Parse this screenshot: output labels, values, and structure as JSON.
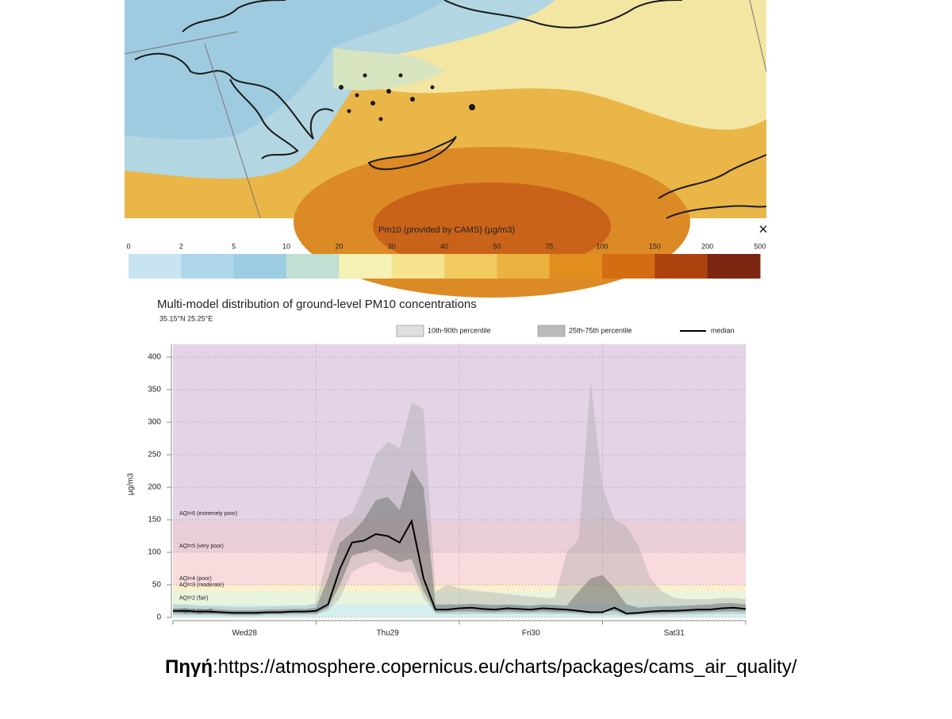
{
  "colorbar": {
    "title": "Pm10 (provided by CAMS) (µg/m3)",
    "ticks": [
      0,
      2,
      5,
      10,
      20,
      30,
      40,
      50,
      75,
      100,
      150,
      200,
      500
    ],
    "colors": [
      "#c8e4f1",
      "#add6ea",
      "#9ccde3",
      "#bfe0d2",
      "#f6f1b4",
      "#f6e38e",
      "#f1cb62",
      "#ecb23f",
      "#e28e1e",
      "#d46c12",
      "#ad4410",
      "#7c2612"
    ]
  },
  "chart_data": {
    "type": "band-line",
    "title": "Multi-model distribution of ground-level PM10 concentrations",
    "subtitle": "35.15°N 25.25°E",
    "y_label": "μg/m3",
    "legend": "top",
    "categories": [
      null,
      null,
      null,
      null,
      null,
      null,
      "Wed28",
      null,
      null,
      null,
      null,
      null,
      null,
      null,
      null,
      null,
      null,
      null,
      "Thu29",
      null,
      null,
      null,
      null,
      null,
      null,
      null,
      null,
      null,
      null,
      null,
      "Fri30",
      null,
      null,
      null,
      null,
      null,
      null,
      null,
      null,
      null,
      null,
      null,
      "Sat31",
      null,
      null,
      null,
      null,
      null,
      null
    ],
    "ylim": [
      0,
      420
    ],
    "yticks": [
      0,
      50,
      100,
      150,
      200,
      250,
      300,
      350,
      400
    ],
    "grid": true,
    "aqi_bands": [
      {
        "label": "AQI=1 (good)",
        "from": 0,
        "to": 20,
        "color": "#d3f0ef"
      },
      {
        "label": "AQI=2 (fair)",
        "from": 20,
        "to": 40,
        "color": "#e9f4dc"
      },
      {
        "label": "AQI=3 (moderate)",
        "from": 40,
        "to": 50,
        "color": "#f8f1cc"
      },
      {
        "label": "AQI=4 (poor)",
        "from": 50,
        "to": 100,
        "color": "#f9dadd"
      },
      {
        "label": "AQI=5 (very poor)",
        "from": 100,
        "to": 150,
        "color": "#e9cdd9"
      },
      {
        "label": "AQI=6 (extremely poor)",
        "from": 150,
        "color": "#e4d3e6"
      }
    ],
    "series": [
      {
        "name": "10th-90th percentile",
        "color": "#9a9a9a",
        "low": [
          3,
          3,
          3,
          3,
          3,
          2,
          2,
          2,
          3,
          3,
          3,
          3,
          4,
          10,
          30,
          70,
          80,
          85,
          75,
          70,
          70,
          30,
          5,
          5,
          5,
          5,
          5,
          5,
          5,
          5,
          5,
          5,
          5,
          5,
          4,
          3,
          3,
          4,
          2,
          3,
          3,
          3,
          4,
          4,
          4,
          5,
          5,
          5,
          5
        ],
        "high": [
          20,
          20,
          18,
          18,
          17,
          16,
          16,
          16,
          17,
          17,
          18,
          18,
          22,
          100,
          150,
          160,
          200,
          250,
          270,
          260,
          330,
          320,
          40,
          50,
          45,
          42,
          40,
          38,
          36,
          34,
          32,
          30,
          30,
          100,
          120,
          365,
          200,
          150,
          140,
          110,
          60,
          40,
          30,
          28,
          28,
          28,
          30,
          30,
          28
        ]
      },
      {
        "name": "25th-75th percentile",
        "color": "#5e5e5e",
        "low": [
          6,
          6,
          5,
          5,
          5,
          4,
          4,
          4,
          5,
          5,
          6,
          6,
          6,
          15,
          50,
          95,
          100,
          105,
          95,
          85,
          90,
          40,
          8,
          8,
          9,
          9,
          8,
          8,
          9,
          8,
          8,
          9,
          8,
          8,
          7,
          6,
          8,
          10,
          4,
          5,
          6,
          6,
          7,
          7,
          8,
          8,
          9,
          9,
          9
        ],
        "high": [
          14,
          14,
          13,
          13,
          12,
          11,
          11,
          11,
          12,
          12,
          13,
          13,
          15,
          60,
          115,
          130,
          150,
          180,
          185,
          165,
          228,
          200,
          20,
          20,
          20,
          21,
          20,
          19,
          20,
          19,
          18,
          20,
          19,
          18,
          40,
          60,
          65,
          45,
          20,
          15,
          16,
          17,
          17,
          18,
          19,
          20,
          22,
          22,
          20
        ]
      },
      {
        "name": "median",
        "color": "#000000",
        "values": [
          10,
          10,
          9,
          9,
          8,
          7,
          7,
          7,
          8,
          8,
          9,
          9,
          10,
          20,
          75,
          115,
          118,
          128,
          125,
          115,
          148,
          60,
          12,
          12,
          14,
          15,
          13,
          12,
          14,
          13,
          12,
          14,
          13,
          12,
          10,
          8,
          8,
          15,
          6,
          7,
          9,
          10,
          10,
          11,
          12,
          12,
          14,
          15,
          13
        ]
      }
    ]
  },
  "source": {
    "label": "Πηγή",
    "separator": ":",
    "url": "https://atmosphere.copernicus.eu/charts/packages/cams_air_quality/"
  }
}
